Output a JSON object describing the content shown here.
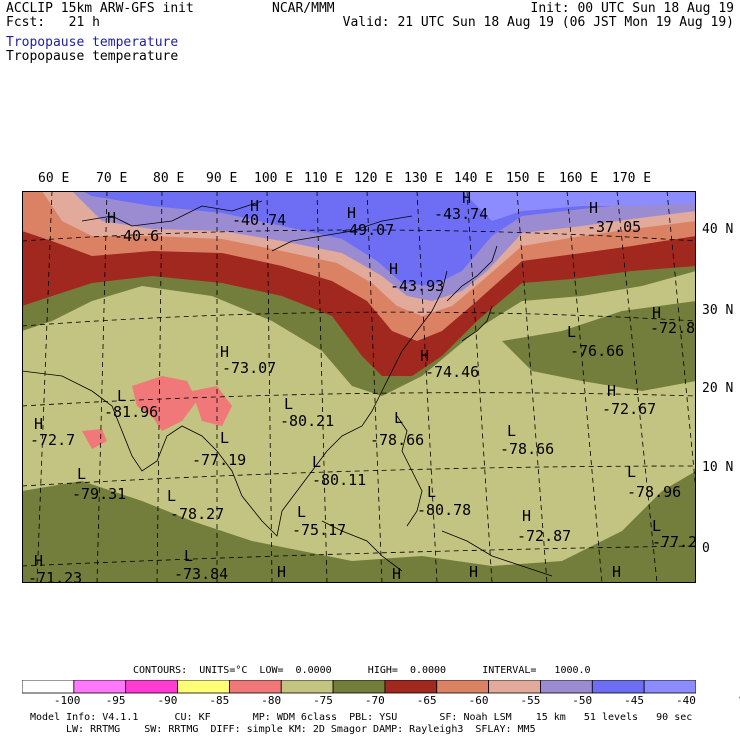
{
  "header": {
    "model": "ACCLIP 15km ARW-GFS init",
    "forecast": "Fcst:   21 h",
    "center": "NCAR/MMM",
    "init": "Init: 00 UTC Sun 18 Aug 19",
    "valid": "Valid: 21 UTC Sun 18 Aug 19 (06 JST Mon 19 Aug 19)",
    "field_blue": "Tropopause temperature",
    "field_black": "Tropopause temperature"
  },
  "map": {
    "lon_labels": [
      "60 E",
      "70 E",
      "80 E",
      "90 E",
      "100 E",
      "110 E",
      "120 E",
      "130 E",
      "140 E",
      "150 E",
      "160 E",
      "170 E"
    ],
    "lat_labels": [
      "40 N",
      "30 N",
      "20 N",
      "10 N",
      "0"
    ],
    "extrema": [
      {
        "type": "H",
        "value": "-40.6"
      },
      {
        "type": "H",
        "value": "-40.74"
      },
      {
        "type": "H",
        "value": "-49.07"
      },
      {
        "type": "H",
        "value": "-43.74"
      },
      {
        "type": "H",
        "value": "-37.05"
      },
      {
        "type": "H",
        "value": "-43.93"
      },
      {
        "type": "L",
        "value": "-76.66"
      },
      {
        "type": "H",
        "value": "-72.8"
      },
      {
        "type": "H",
        "value": "-73.07"
      },
      {
        "type": "H",
        "value": "-74.46"
      },
      {
        "type": "L",
        "value": "-81.96"
      },
      {
        "type": "L",
        "value": "-80.21"
      },
      {
        "type": "L",
        "value": "-78.66"
      },
      {
        "type": "L",
        "value": "-78.66"
      },
      {
        "type": "H",
        "value": "-72.67"
      },
      {
        "type": "H",
        "value": "-72.7"
      },
      {
        "type": "L",
        "value": "-77.19"
      },
      {
        "type": "L",
        "value": "-80.11"
      },
      {
        "type": "L",
        "value": "-79.31"
      },
      {
        "type": "L",
        "value": "-78.27"
      },
      {
        "type": "L",
        "value": "-75.17"
      },
      {
        "type": "L",
        "value": "-80.78"
      },
      {
        "type": "H",
        "value": "-72.87"
      },
      {
        "type": "L",
        "value": "-78.96"
      },
      {
        "type": "L",
        "value": "-77.2"
      },
      {
        "type": "H",
        "value": "-71.23"
      },
      {
        "type": "L",
        "value": "-73.84"
      },
      {
        "type": "H",
        "value": ""
      },
      {
        "type": "H",
        "value": ""
      },
      {
        "type": "H",
        "value": ""
      },
      {
        "type": "H",
        "value": ""
      }
    ]
  },
  "colorbar": {
    "header": "CONTOURS:  UNITS=°C  LOW=  0.0000      HIGH=  0.0000      INTERVAL=   1000.0",
    "labels": [
      "-100",
      "-95",
      "-90",
      "-85",
      "-80",
      "-75",
      "-70",
      "-65",
      "-60",
      "-55",
      "-50",
      "-45",
      "-40",
      "°C"
    ],
    "colors": [
      "#ffffff",
      "#ff78ff",
      "#ff3cd2",
      "#ffff78",
      "#f07878",
      "#c3c382",
      "#737d3c",
      "#a0281e",
      "#dc8264",
      "#e1aa9b",
      "#9b8cd2",
      "#6e6ef5",
      "#8c8cff"
    ]
  },
  "model_info": {
    "line1": "Model Info: V4.1.1      CU: KF       MP: WDM 6class  PBL: YSU       SF: Noah LSM    15 km   51 levels   90 sec",
    "line2": "LW: RRTMG    SW: RRTMG  DIFF: simple KM: 2D Smagor DAMP: Rayleigh3  SFLAY: MM5"
  }
}
